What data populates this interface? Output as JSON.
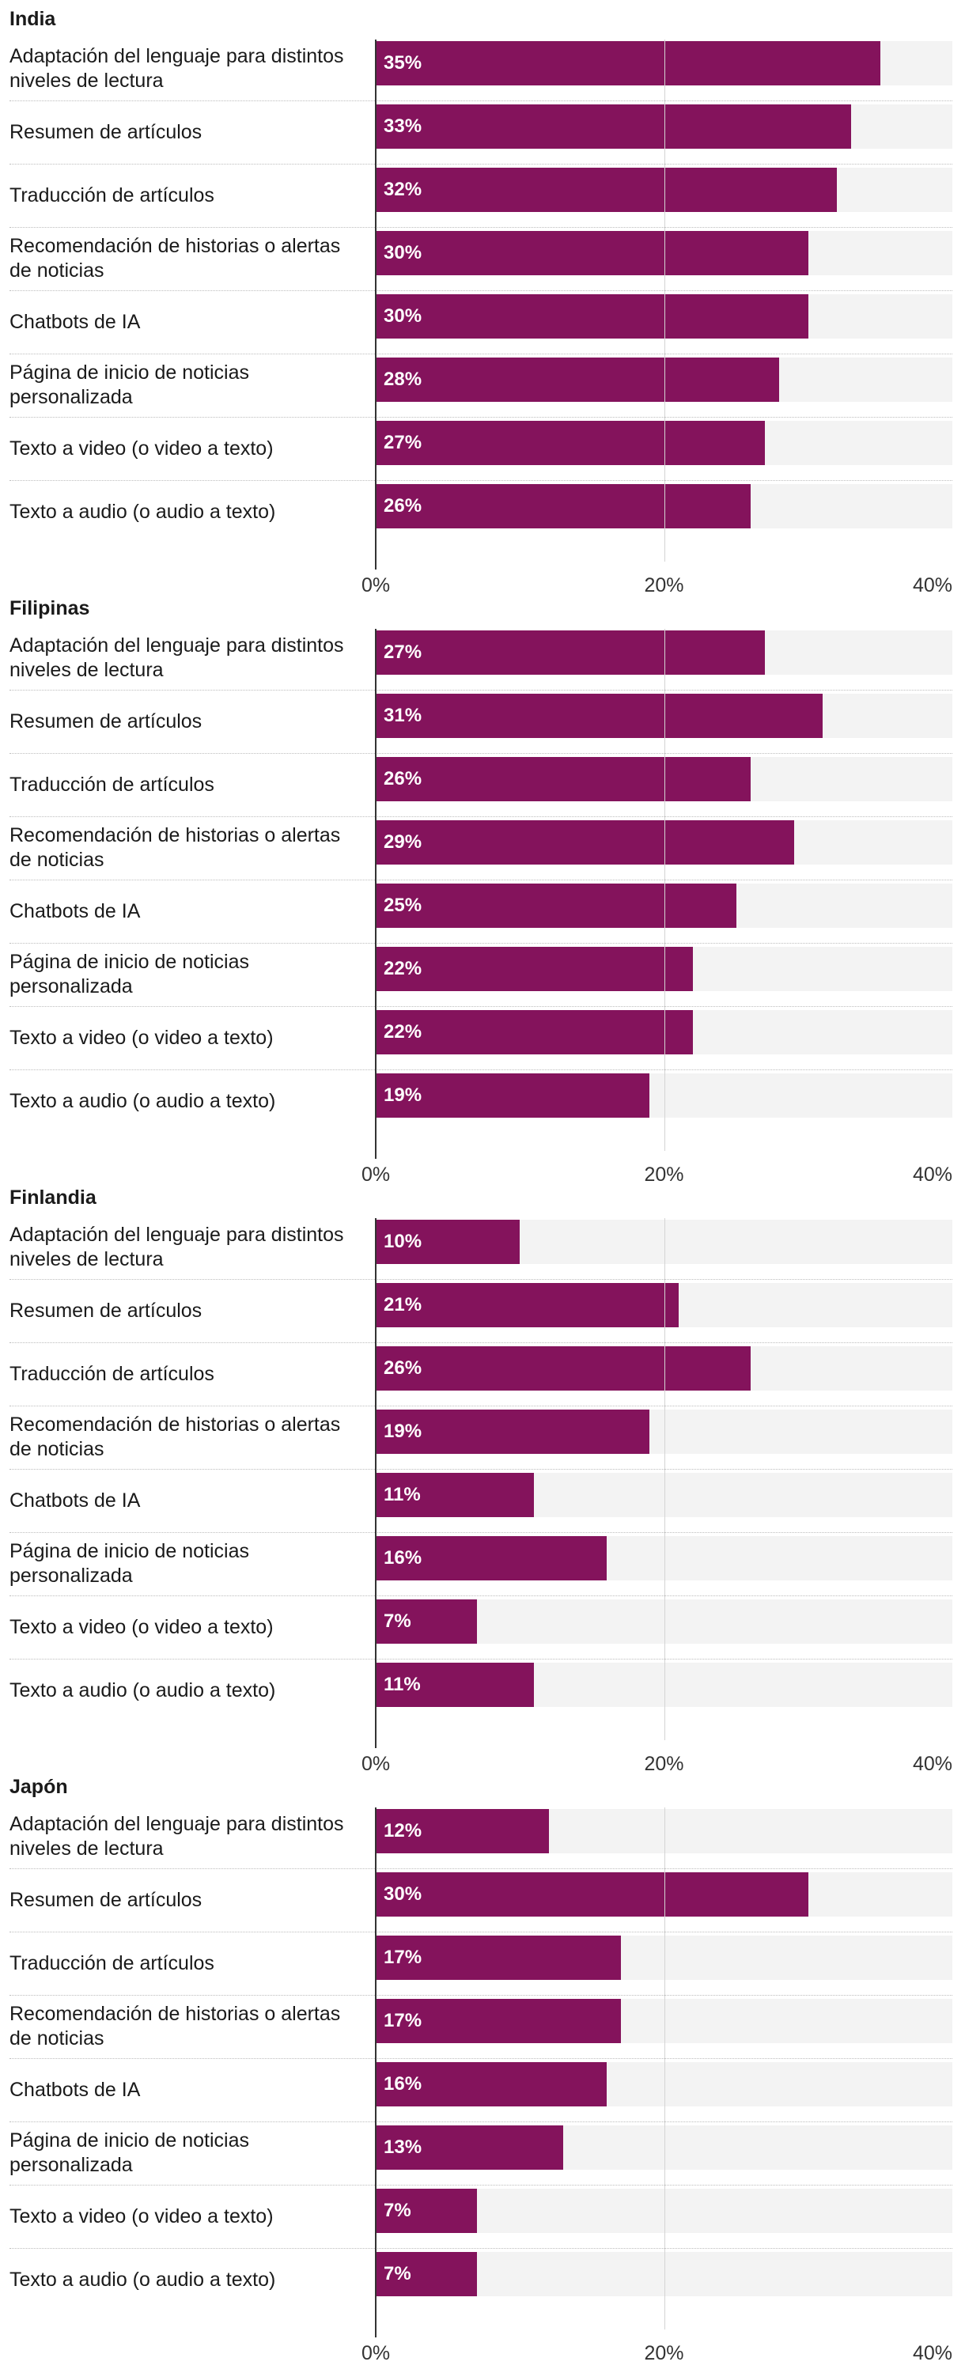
{
  "chart_data": [
    {
      "type": "bar",
      "orientation": "horizontal",
      "title": "India",
      "categories": [
        "Adaptación del lenguaje para distintos niveles de lectura",
        "Resumen de artículos",
        "Traducción de artículos",
        "Recomendación de historias o alertas de noticias",
        "Chatbots de IA",
        "Página de inicio de noticias personalizada",
        "Texto a video (o video a texto)",
        "Texto a audio (o audio a texto)"
      ],
      "values": [
        35,
        33,
        32,
        30,
        30,
        28,
        27,
        26
      ],
      "value_labels": [
        "35%",
        "33%",
        "32%",
        "30%",
        "30%",
        "28%",
        "27%",
        "26%"
      ],
      "xlim": [
        0,
        40
      ],
      "xticks": [
        0,
        20,
        40
      ],
      "xtick_labels": [
        "0%",
        "20%",
        "40%"
      ],
      "bar_color": "#84135c",
      "track_color": "#f3f3f3"
    },
    {
      "type": "bar",
      "orientation": "horizontal",
      "title": "Filipinas",
      "categories": [
        "Adaptación del lenguaje para distintos niveles de lectura",
        "Resumen de artículos",
        "Traducción de artículos",
        "Recomendación de historias o alertas de noticias",
        "Chatbots de IA",
        "Página de inicio de noticias personalizada",
        "Texto a video (o video a texto)",
        "Texto a audio (o audio a texto)"
      ],
      "values": [
        27,
        31,
        26,
        29,
        25,
        22,
        22,
        19
      ],
      "value_labels": [
        "27%",
        "31%",
        "26%",
        "29%",
        "25%",
        "22%",
        "22%",
        "19%"
      ],
      "xlim": [
        0,
        40
      ],
      "xticks": [
        0,
        20,
        40
      ],
      "xtick_labels": [
        "0%",
        "20%",
        "40%"
      ],
      "bar_color": "#84135c",
      "track_color": "#f3f3f3"
    },
    {
      "type": "bar",
      "orientation": "horizontal",
      "title": "Finlandia",
      "categories": [
        "Adaptación del lenguaje para distintos niveles de lectura",
        "Resumen de artículos",
        "Traducción de artículos",
        "Recomendación de historias o alertas de noticias",
        "Chatbots de IA",
        "Página de inicio de noticias personalizada",
        "Texto a video (o video a texto)",
        "Texto a audio (o audio a texto)"
      ],
      "values": [
        10,
        21,
        26,
        19,
        11,
        16,
        7,
        11
      ],
      "value_labels": [
        "10%",
        "21%",
        "26%",
        "19%",
        "11%",
        "16%",
        "7%",
        "11%"
      ],
      "xlim": [
        0,
        40
      ],
      "xticks": [
        0,
        20,
        40
      ],
      "xtick_labels": [
        "0%",
        "20%",
        "40%"
      ],
      "bar_color": "#84135c",
      "track_color": "#f3f3f3"
    },
    {
      "type": "bar",
      "orientation": "horizontal",
      "title": "Japón",
      "categories": [
        "Adaptación del lenguaje para distintos niveles de lectura",
        "Resumen de artículos",
        "Traducción de artículos",
        "Recomendación de historias o alertas de noticias",
        "Chatbots de IA",
        "Página de inicio de noticias personalizada",
        "Texto a video (o video a texto)",
        "Texto a audio (o audio a texto)"
      ],
      "values": [
        12,
        30,
        17,
        17,
        16,
        13,
        7,
        7
      ],
      "value_labels": [
        "12%",
        "30%",
        "17%",
        "17%",
        "16%",
        "13%",
        "7%",
        "7%"
      ],
      "xlim": [
        0,
        40
      ],
      "xticks": [
        0,
        20,
        40
      ],
      "xtick_labels": [
        "0%",
        "20%",
        "40%"
      ],
      "bar_color": "#84135c",
      "track_color": "#f3f3f3"
    }
  ]
}
